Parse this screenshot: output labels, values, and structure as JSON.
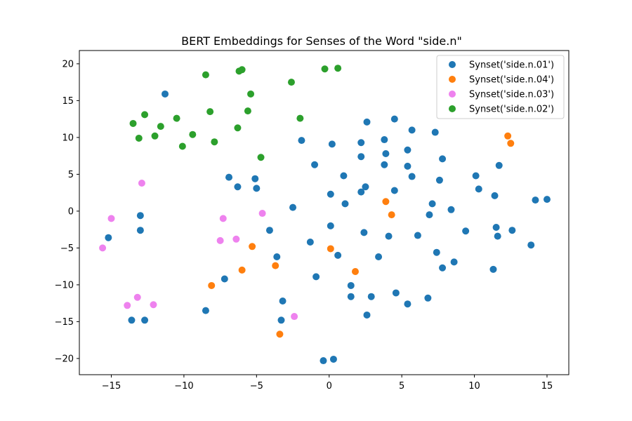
{
  "chart_data": {
    "type": "scatter",
    "title": "BERT Embeddings for Senses of the Word \"side.n\"",
    "xlabel": "",
    "ylabel": "",
    "xlim": [
      -17.2,
      16.5
    ],
    "ylim": [
      -22.2,
      21.8
    ],
    "xticks": [
      -15,
      -10,
      -5,
      0,
      5,
      10,
      15
    ],
    "yticks": [
      -20,
      -15,
      -10,
      -5,
      0,
      5,
      10,
      15,
      20
    ],
    "tick_labels_x": [
      "−15",
      "−10",
      "−5",
      "0",
      "5",
      "10",
      "15"
    ],
    "tick_labels_y": [
      "−20",
      "−15",
      "−10",
      "−5",
      "0",
      "5",
      "10",
      "15",
      "20"
    ],
    "grid": false,
    "legend_position": "top-right",
    "series": [
      {
        "name": "Synset('side.n.01')",
        "color": "#1f77b4",
        "points": [
          [
            -11.3,
            15.9
          ],
          [
            -15.2,
            -3.6
          ],
          [
            -13.0,
            -0.6
          ],
          [
            -13.0,
            -2.6
          ],
          [
            -13.6,
            -14.8
          ],
          [
            -12.7,
            -14.8
          ],
          [
            -8.5,
            -13.5
          ],
          [
            -7.2,
            -9.2
          ],
          [
            -6.9,
            4.6
          ],
          [
            -6.3,
            3.3
          ],
          [
            -5.1,
            4.4
          ],
          [
            -5.0,
            3.1
          ],
          [
            -4.1,
            -2.6
          ],
          [
            -3.6,
            -6.2
          ],
          [
            -3.2,
            -12.2
          ],
          [
            -3.3,
            -14.8
          ],
          [
            -2.5,
            0.5
          ],
          [
            -1.9,
            9.6
          ],
          [
            -1.3,
            -4.2
          ],
          [
            -1.0,
            6.3
          ],
          [
            -0.9,
            -8.9
          ],
          [
            0.1,
            2.3
          ],
          [
            0.1,
            -2.0
          ],
          [
            0.2,
            9.1
          ],
          [
            0.6,
            -6.0
          ],
          [
            1.0,
            4.8
          ],
          [
            1.1,
            1.0
          ],
          [
            1.5,
            -10.1
          ],
          [
            1.5,
            -11.6
          ],
          [
            2.2,
            9.3
          ],
          [
            2.2,
            7.4
          ],
          [
            2.2,
            2.6
          ],
          [
            2.5,
            3.3
          ],
          [
            2.4,
            -2.9
          ],
          [
            2.6,
            12.1
          ],
          [
            2.6,
            -14.1
          ],
          [
            2.9,
            -11.6
          ],
          [
            3.4,
            -6.2
          ],
          [
            3.8,
            9.7
          ],
          [
            3.8,
            6.3
          ],
          [
            3.9,
            7.8
          ],
          [
            4.1,
            -3.4
          ],
          [
            4.5,
            12.5
          ],
          [
            4.5,
            2.8
          ],
          [
            4.6,
            -11.1
          ],
          [
            5.4,
            8.3
          ],
          [
            5.4,
            6.1
          ],
          [
            5.4,
            -12.6
          ],
          [
            5.7,
            11.0
          ],
          [
            5.7,
            4.7
          ],
          [
            6.1,
            -3.3
          ],
          [
            6.8,
            -11.8
          ],
          [
            6.9,
            -0.5
          ],
          [
            7.1,
            1.0
          ],
          [
            7.3,
            10.7
          ],
          [
            7.4,
            -5.6
          ],
          [
            7.6,
            4.2
          ],
          [
            7.8,
            7.1
          ],
          [
            7.8,
            -7.7
          ],
          [
            8.4,
            0.2
          ],
          [
            8.6,
            -6.9
          ],
          [
            9.4,
            -2.7
          ],
          [
            10.1,
            4.8
          ],
          [
            10.3,
            3.0
          ],
          [
            11.3,
            -7.9
          ],
          [
            11.4,
            2.1
          ],
          [
            11.5,
            -2.2
          ],
          [
            11.6,
            -3.4
          ],
          [
            11.7,
            6.2
          ],
          [
            12.6,
            -2.6
          ],
          [
            13.9,
            -4.6
          ],
          [
            14.2,
            1.5
          ],
          [
            15.0,
            1.6
          ],
          [
            -0.4,
            -20.3
          ],
          [
            0.3,
            -20.1
          ]
        ]
      },
      {
        "name": "Synset('side.n.04')",
        "color": "#ff7f0e",
        "points": [
          [
            12.3,
            10.2
          ],
          [
            12.5,
            9.2
          ],
          [
            3.9,
            1.3
          ],
          [
            4.3,
            -0.5
          ],
          [
            0.1,
            -5.1
          ],
          [
            1.8,
            -8.2
          ],
          [
            -5.3,
            -4.8
          ],
          [
            -6.0,
            -8.0
          ],
          [
            -8.1,
            -10.1
          ],
          [
            -3.7,
            -7.4
          ],
          [
            -3.4,
            -16.7
          ]
        ]
      },
      {
        "name": "Synset('side.n.03')",
        "color": "#ee82ee",
        "points": [
          [
            -12.9,
            3.8
          ],
          [
            -15.0,
            -1.0
          ],
          [
            -15.6,
            -5.0
          ],
          [
            -7.3,
            -1.0
          ],
          [
            -7.5,
            -4.0
          ],
          [
            -6.4,
            -3.8
          ],
          [
            -4.6,
            -0.3
          ],
          [
            -13.2,
            -11.7
          ],
          [
            -13.9,
            -12.8
          ],
          [
            -12.1,
            -12.7
          ],
          [
            -2.4,
            -14.3
          ]
        ]
      },
      {
        "name": "Synset('side.n.02')",
        "color": "#2ca02c",
        "points": [
          [
            -8.5,
            18.5
          ],
          [
            -6.2,
            19.0
          ],
          [
            -6.0,
            19.2
          ],
          [
            -0.3,
            19.3
          ],
          [
            0.6,
            19.4
          ],
          [
            -2.6,
            17.5
          ],
          [
            -5.4,
            15.9
          ],
          [
            -8.2,
            13.5
          ],
          [
            -5.6,
            13.6
          ],
          [
            -2.0,
            12.6
          ],
          [
            -12.7,
            13.1
          ],
          [
            -13.5,
            11.9
          ],
          [
            -10.5,
            12.6
          ],
          [
            -11.6,
            11.5
          ],
          [
            -6.3,
            11.3
          ],
          [
            -13.1,
            9.9
          ],
          [
            -12.0,
            10.2
          ],
          [
            -9.4,
            10.4
          ],
          [
            -10.1,
            8.8
          ],
          [
            -7.9,
            9.4
          ],
          [
            -4.7,
            7.3
          ]
        ]
      }
    ]
  }
}
